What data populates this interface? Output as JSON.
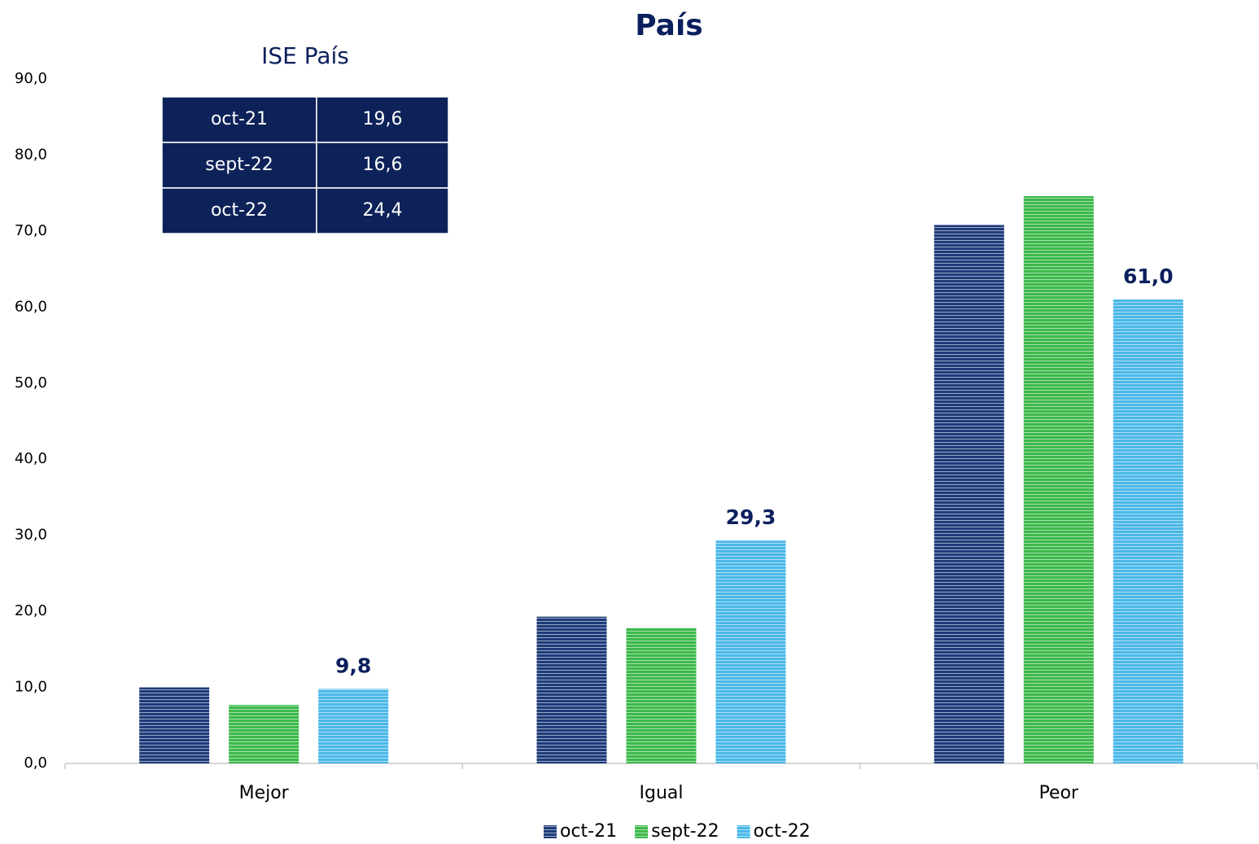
{
  "chart_data": {
    "type": "bar",
    "title": "País",
    "categories": [
      "Mejor",
      "Igual",
      "Peor"
    ],
    "series": [
      {
        "name": "oct-21",
        "color": "#1f3c7a",
        "values": [
          10.0,
          19.3,
          70.8
        ]
      },
      {
        "name": "sept-22",
        "color": "#3cb94a",
        "values": [
          7.7,
          17.8,
          74.6
        ]
      },
      {
        "name": "oct-22",
        "color": "#4bb8e8",
        "values": [
          9.8,
          29.3,
          61.0
        ],
        "value_labels": [
          "9,8",
          "29,3",
          "61,0"
        ]
      }
    ],
    "ylim": [
      0,
      90
    ],
    "yticks": [
      {
        "value": 0,
        "label": "0,0"
      },
      {
        "value": 10,
        "label": "10,0"
      },
      {
        "value": 20,
        "label": "20,0"
      },
      {
        "value": 30,
        "label": "30,0"
      },
      {
        "value": 40,
        "label": "40,0"
      },
      {
        "value": 50,
        "label": "50,0"
      },
      {
        "value": 60,
        "label": "60,0"
      },
      {
        "value": 70,
        "label": "70,0"
      },
      {
        "value": 80,
        "label": "80,0"
      },
      {
        "value": 90,
        "label": "90,0"
      }
    ],
    "grid": false,
    "legend": "bottom",
    "inset_table": {
      "title": "ISE País",
      "rows": [
        [
          "oct-21",
          "19,6"
        ],
        [
          "sept-22",
          "16,6"
        ],
        [
          "oct-22",
          "24,4"
        ]
      ]
    }
  }
}
